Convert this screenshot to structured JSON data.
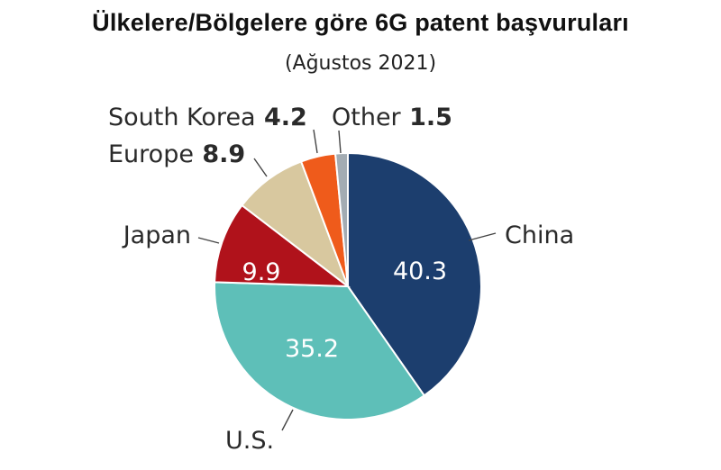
{
  "chart_data": {
    "type": "pie",
    "title": "Ülkelere/Bölgelere göre 6G patent başvuruları",
    "subtitle": "(Ağustos 2021)",
    "slices": [
      {
        "label": "China",
        "value": 40.3,
        "value_text": "40.3",
        "color": "#1c3e6e"
      },
      {
        "label": "U.S.",
        "value": 35.2,
        "value_text": "35.2",
        "color": "#5ebfb8"
      },
      {
        "label": "Japan",
        "value": 9.9,
        "value_text": "9.9",
        "color": "#b0121b"
      },
      {
        "label": "Europe",
        "value": 8.9,
        "value_text": "8.9",
        "color": "#d8c89f"
      },
      {
        "label": "South Korea",
        "value": 4.2,
        "value_text": "4.2",
        "color": "#ef5b1b"
      },
      {
        "label": "Other",
        "value": 1.5,
        "value_text": "1.5",
        "color": "#a3acb3"
      }
    ]
  }
}
